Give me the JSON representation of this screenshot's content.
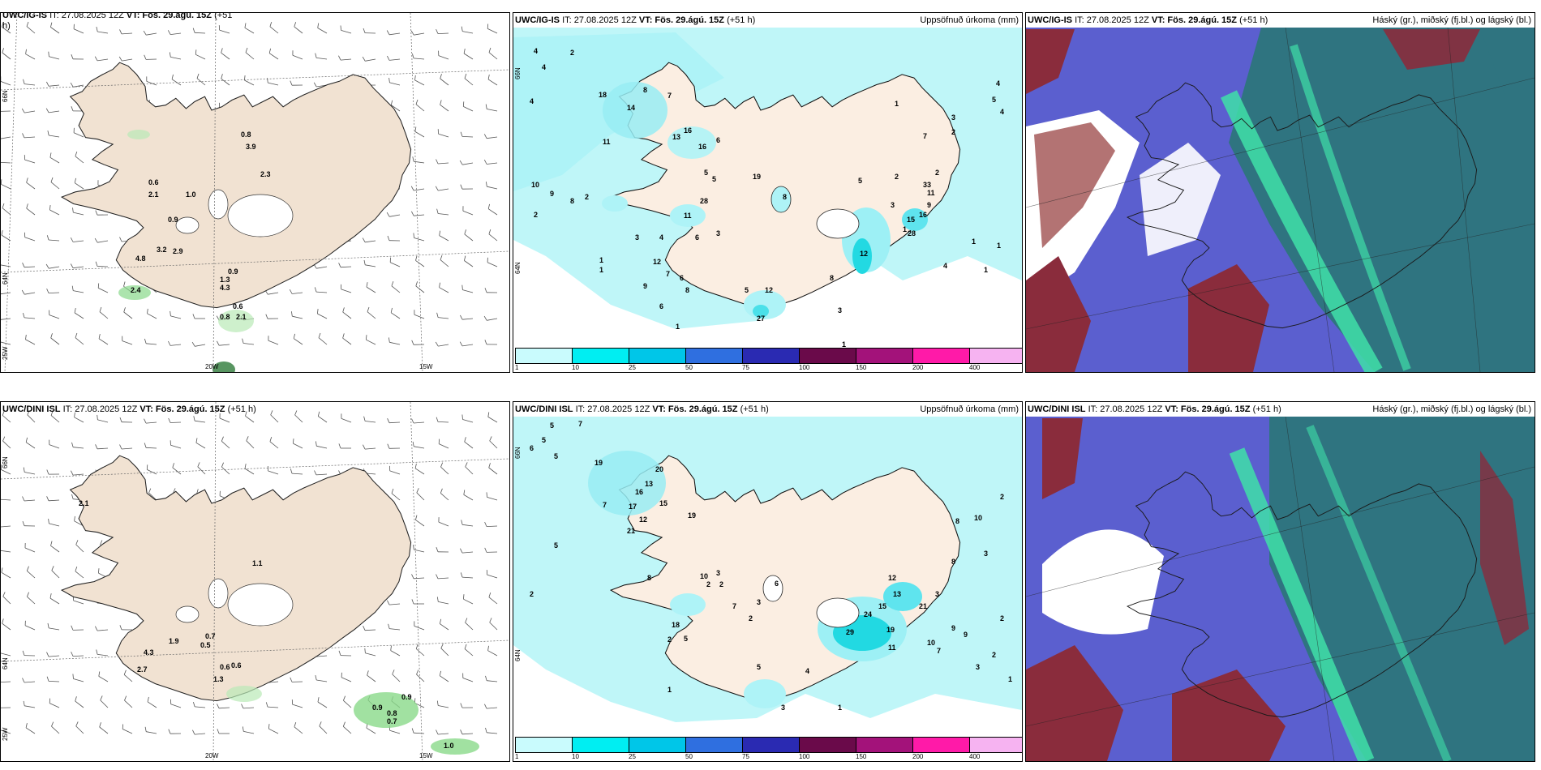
{
  "colors": {
    "land": "#f8e8d8",
    "land_dark": "#e9d6c2",
    "precip_light": "#aef3f7",
    "precip_mid": "#22e3ea",
    "cloud_blue": "#5a5fd0",
    "cloud_teal": "#2f7a86",
    "cloud_red": "#8e2c3e",
    "cloud_green": "#3fd7a4"
  },
  "colorbar": {
    "colors": [
      "#c9fbfd",
      "#00eef2",
      "#00c6e8",
      "#2f6fe0",
      "#2a2ab2",
      "#6a0a4a",
      "#a3127a",
      "#ff1aa8",
      "#f6b3f1"
    ],
    "labels": [
      "1",
      "10",
      "25",
      "50",
      "75",
      "100",
      "150",
      "200",
      "400"
    ]
  },
  "panels": [
    {
      "model": "UWC/IG-IS",
      "init": "IT: 27.08.2025 12Z",
      "vt_label": "VT:",
      "vt_value": "Fös. 29.ágú. 15Z",
      "lead": "(+51",
      "lead2": "h)",
      "right": "",
      "lat66": "66N",
      "lat64": "64N",
      "lon25": "25W",
      "lon20": "20W",
      "lon15": "15W",
      "values": [
        "0.8",
        "3.9",
        "2.3",
        "0.6",
        "2.1",
        "1.0",
        "0.9",
        "3.2",
        "2.9",
        "4.8",
        "0.9",
        "1.3",
        "4.3",
        "2.4",
        "0.6",
        "0.8",
        "2.1"
      ]
    },
    {
      "model": "UWC/IG-IS",
      "init": "IT: 27.08.2025 12Z",
      "vt_label": "VT:",
      "vt_value": "Fös. 29.ágú. 15Z",
      "lead": "(+51 h)",
      "right": "Uppsöfnuð úrkoma (mm)",
      "lat66": "66N",
      "lat64": "64N",
      "values": [
        "4",
        "4",
        "2",
        "4",
        "10",
        "18",
        "14",
        "8",
        "16",
        "11",
        "13",
        "16",
        "7",
        "6",
        "5",
        "5",
        "19",
        "8",
        "28",
        "2",
        "8",
        "2",
        "9",
        "11",
        "3",
        "4",
        "6",
        "3",
        "12",
        "7",
        "6",
        "1",
        "1",
        "8",
        "5",
        "12",
        "6",
        "27",
        "9",
        "8",
        "3",
        "1",
        "1",
        "2",
        "5",
        "3",
        "9",
        "1",
        "2",
        "2",
        "7",
        "11",
        "33",
        "16",
        "15",
        "28",
        "12",
        "1",
        "1",
        "4",
        "5",
        "4",
        "3",
        "1",
        "1",
        "4"
      ]
    },
    {
      "model": "UWC/IG-IS",
      "init": "IT: 27.08.2025 12Z",
      "vt_label": "VT:",
      "vt_value": "Fös. 29.ágú. 15Z",
      "lead": "(+51 h)",
      "right": "Háský (gr.), miðský (fj.bl.) og lágský (bl.)"
    },
    {
      "model": "UWC/DINI ISL",
      "init": "IT: 27.08.2025 12Z",
      "vt_label": "VT:",
      "vt_value": "Fös. 29.ágú. 15Z",
      "lead": "(+51 h)",
      "right": "",
      "lat66": "66N",
      "lat64": "64N",
      "lon25": "25W",
      "lon20": "20W",
      "lon15": "15W",
      "values": [
        "2.1",
        "1.1",
        "1.9",
        "0.7",
        "0.5",
        "4.3",
        "2.7",
        "0.6",
        "0.6",
        "1.3",
        "0.9",
        "0.9",
        "0.8",
        "0.7",
        "1.0"
      ]
    },
    {
      "model": "UWC/DINI ISL",
      "init": "IT: 27.08.2025 12Z",
      "vt_label": "VT:",
      "vt_value": "Fös. 29.ágú. 15Z",
      "lead": "(+51 h)",
      "right": "Uppsöfnuð úrkoma (mm)",
      "lat66": "66N",
      "lat64": "64N",
      "values": [
        "5",
        "7",
        "5",
        "6",
        "5",
        "19",
        "20",
        "13",
        "16",
        "17",
        "12",
        "21",
        "15",
        "19",
        "7",
        "2",
        "5",
        "8",
        "10",
        "3",
        "2",
        "2",
        "18",
        "7",
        "2",
        "5",
        "6",
        "3",
        "12",
        "13",
        "15",
        "21",
        "24",
        "29",
        "19",
        "11",
        "10",
        "7",
        "9",
        "9",
        "8",
        "3",
        "3",
        "2",
        "10",
        "8",
        "3",
        "2",
        "1",
        "2",
        "1",
        "4",
        "3",
        "5",
        "1",
        "2"
      ]
    },
    {
      "model": "UWC/DINI ISL",
      "init": "IT: 27.08.2025 12Z",
      "vt_label": "VT:",
      "vt_value": "Fös. 29.ágú. 15Z",
      "lead": "(+51 h)",
      "right": "Háský (gr.), miðský (fj.bl.) og lágský (bl.)"
    }
  ]
}
